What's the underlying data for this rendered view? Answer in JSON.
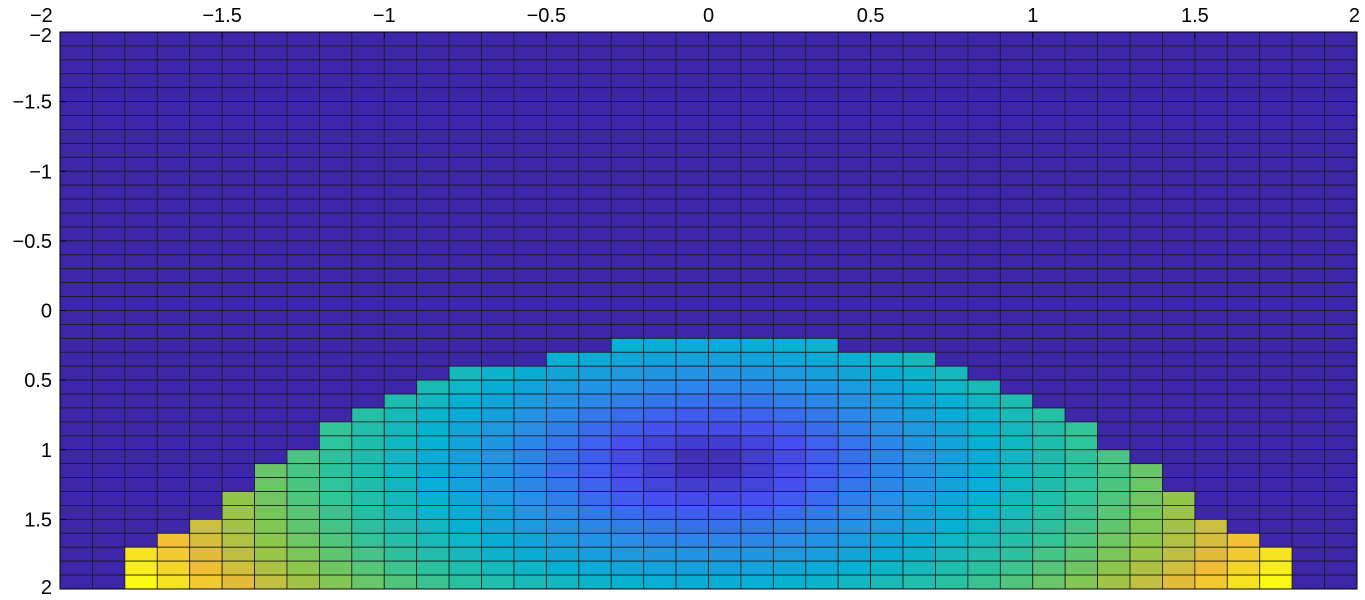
{
  "chart_data": {
    "type": "heatmap",
    "title": "",
    "xlabel": "",
    "ylabel": "",
    "xlim": [
      -2,
      2
    ],
    "ylim": [
      -2,
      2
    ],
    "y_direction": "reversed",
    "grid": true,
    "x_axis_location": "top",
    "colormap": "parula",
    "x_ticks": [
      -2,
      -1.5,
      -1,
      -0.5,
      0,
      0.5,
      1,
      1.5,
      2
    ],
    "x_tick_labels": [
      "−2",
      "−1.5",
      "−1",
      "−0.5",
      "0",
      "0.5",
      "1",
      "1.5",
      "2"
    ],
    "y_ticks": [
      -2,
      -1.5,
      -1,
      -0.5,
      0,
      0.5,
      1,
      1.5,
      2
    ],
    "y_tick_labels": [
      "−2",
      "−1.5",
      "−1",
      "−0.5",
      "0",
      "0.5",
      "1",
      "1.5",
      "2"
    ],
    "x_cells": 40,
    "y_cells": 40,
    "value_function": "sqrt(x^2 + (y - 1.1)^2) where y >= threshold(x), else 0",
    "boundary_points": [
      {
        "x": -1.8,
        "y": 1.8
      },
      {
        "x": -1.6,
        "y": 1.6
      },
      {
        "x": -1.4,
        "y": 1.2
      },
      {
        "x": -1.2,
        "y": 0.9
      },
      {
        "x": -0.9,
        "y": 0.5
      },
      {
        "x": -0.6,
        "y": 0.4
      },
      {
        "x": -0.2,
        "y": 0.2
      },
      {
        "x": 0.2,
        "y": 0.2
      },
      {
        "x": 0.6,
        "y": 0.3
      },
      {
        "x": 0.9,
        "y": 0.5
      },
      {
        "x": 1.2,
        "y": 0.9
      },
      {
        "x": 1.4,
        "y": 1.2
      },
      {
        "x": 1.6,
        "y": 1.6
      },
      {
        "x": 1.8,
        "y": 1.8
      }
    ]
  }
}
